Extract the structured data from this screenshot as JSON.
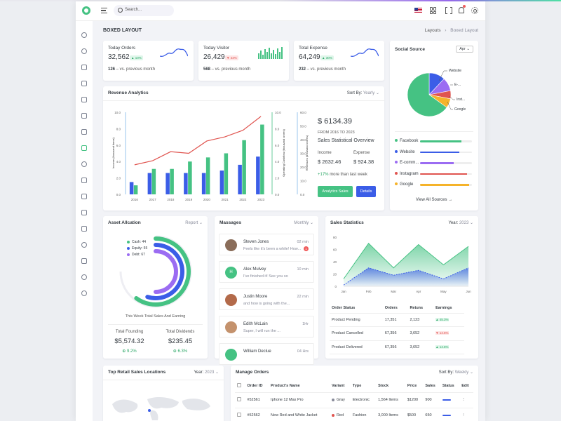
{
  "header": {
    "search_placeholder": "Search..."
  },
  "page": {
    "title": "BOXED LAYOUT",
    "breadcrumb": [
      "Layouts",
      "Boxed Layout"
    ]
  },
  "stats": [
    {
      "label": "Today Orders",
      "value": "32,562",
      "badge": "▲ 10%",
      "trend": "up",
      "sub_value": "126",
      "sub_text": " – vs. previous month",
      "color": "#3b5de7"
    },
    {
      "label": "Today Visitor",
      "value": "26,429",
      "badge": "▼ 23%",
      "trend": "down",
      "sub_value": "568",
      "sub_text": " – vs. previous month",
      "color": "#45c283"
    },
    {
      "label": "Total Expense",
      "value": "64,249",
      "badge": "▲ 30%",
      "trend": "up",
      "sub_value": "232",
      "sub_text": " – vs. previous month",
      "color": "#3b5de7"
    }
  ],
  "revenue": {
    "title": "Revenue Analytics",
    "sort_label": "Sort By:",
    "sort_value": "Yearly",
    "amount": "$ 6134.39",
    "range": "FROM 2016 TO 2023",
    "subtitle": "Sales Statistical Overview",
    "income_label": "Income",
    "income_value": "$ 2632.46",
    "expense_label": "Expense",
    "expense_value": "$ 924.38",
    "growth_value": "+17%",
    "growth_text": "more than last week",
    "btn_analytics": "Analytics Sales",
    "btn_details": "Details"
  },
  "chart_data": [
    {
      "type": "bar",
      "title": "Revenue Analytics",
      "categories": [
        "2016",
        "2017",
        "2018",
        "2019",
        "2020",
        "2021",
        "2022",
        "2023"
      ],
      "series": [
        {
          "name": "",
          "values": [
            1.5,
            2.6,
            2.6,
            2.6,
            2.6,
            2.9,
            3.6,
            4.6
          ],
          "color": "#3b5de7"
        },
        {
          "name": "",
          "values": [
            1.1,
            3.1,
            3.1,
            4.0,
            4.5,
            5.0,
            6.6,
            8.5
          ],
          "color": "#45c283"
        },
        {
          "name": "",
          "type": "line",
          "values": [
            3.6,
            4.1,
            5.2,
            5.0,
            6.5,
            7.0,
            7.8,
            9.5
          ],
          "color": "#e0544f"
        }
      ],
      "left_axis": {
        "label": "Income (thousand items)",
        "ticks": [
          "10.0",
          "8.0",
          "6.0",
          "4.0",
          "2.0",
          "0.0"
        ],
        "ylim": [
          0,
          10
        ]
      },
      "mid_axis": {
        "label": "Operating Cashflow (thousand crores)",
        "ticks": [
          "10.0",
          "8.0",
          "6.0",
          "4.0",
          "2.0",
          "0.0"
        ]
      },
      "right_axis": {
        "label": "Revenues (thousand crores)",
        "ticks": [
          "60.0",
          "50.0",
          "40.0",
          "30.0",
          "20.0",
          "10.0",
          "0.0"
        ]
      }
    },
    {
      "type": "pie",
      "title": "Social Source",
      "slices": [
        {
          "label": "Website",
          "value": 12,
          "color": "#3b5de7"
        },
        {
          "label": "E-commerce",
          "value": 10,
          "color": "#9b6cf2"
        },
        {
          "label": "Instagram",
          "value": 6,
          "color": "#e0544f"
        },
        {
          "label": "Google",
          "value": 7,
          "color": "#f5b32a"
        },
        {
          "label": "Facebook",
          "value": 65,
          "color": "#45c283"
        }
      ]
    },
    {
      "type": "area",
      "title": "Sales Statistics",
      "categories": [
        "Jan",
        "Feb",
        "Mar",
        "Apr",
        "May",
        "Jun"
      ],
      "ylim": [
        0,
        80
      ],
      "yticks": [
        "80",
        "60",
        "40",
        "20",
        "0"
      ],
      "series": [
        {
          "name": "",
          "values": [
            12,
            70,
            30,
            68,
            35,
            65
          ],
          "color": "#45c283"
        },
        {
          "name": "",
          "values": [
            2,
            30,
            18,
            26,
            12,
            30
          ],
          "color": "#3b5de7"
        }
      ]
    }
  ],
  "social": {
    "title": "Social Source",
    "filter": "Apr",
    "labels": [
      "Website",
      "E-...",
      "Inst...",
      "Google"
    ],
    "items": [
      {
        "name": "Facebook",
        "color": "#45c283",
        "fill": 0.8
      },
      {
        "name": "Website",
        "color": "#3b5de7",
        "fill": 0.75
      },
      {
        "name": "E-comm...",
        "color": "#9b6cf2",
        "fill": 0.65
      },
      {
        "name": "Instagram",
        "color": "#e0544f",
        "fill": 0.9
      },
      {
        "name": "Google",
        "color": "#f5b32a",
        "fill": 0.95
      }
    ],
    "view_all": "View All Sources →"
  },
  "asset": {
    "title": "Asset Allcation",
    "filter": "Report",
    "legend": [
      {
        "label": "Cash: 44",
        "color": "#45c283",
        "fill": 0.6
      },
      {
        "label": "Equity: 55",
        "color": "#3b5de7",
        "fill": 0.55
      },
      {
        "label": "Debt: 67",
        "color": "#9b6cf2",
        "fill": 0.5
      }
    ],
    "caption": "This Week Total Sales And Earning",
    "founding_label": "Total Founding",
    "founding_value": "$5,574.32",
    "founding_pct": "9.2%",
    "dividends_label": "Total Dividends",
    "dividends_value": "$235.45",
    "dividends_pct": "6.3%"
  },
  "messages": {
    "title": "Massages",
    "filter": "Monthly",
    "items": [
      {
        "name": "Steven Jones",
        "text": "Feels like it's been a while! How...",
        "time": "02 min",
        "count": "1",
        "avatar": "#8a6d5a"
      },
      {
        "name": "Alex Mulvey",
        "text": "I've finished it! See you so",
        "time": "10 min",
        "initial": "H",
        "avatar": "#45c283"
      },
      {
        "name": "Justin Moore",
        "text": "and how is going with the...",
        "time": "22 min",
        "avatar": "#b36a4a"
      },
      {
        "name": "Edith McLain",
        "text": "Super, I will run the ...",
        "time": "1Hr",
        "avatar": "#c4926d"
      },
      {
        "name": "William Declue",
        "text": "",
        "time": "04 Hrs",
        "avatar": "#45c283"
      }
    ]
  },
  "sales": {
    "title": "Sales Statistics",
    "year_label": "Year:",
    "year_value": "2023",
    "headers": [
      "Order Status",
      "Orders",
      "Retuns",
      "Earnings"
    ],
    "rows": [
      {
        "status": "Product Pending",
        "orders": "17,351",
        "returns": "2,123",
        "earnings": "▲ 45.3%",
        "trend": "up"
      },
      {
        "status": "Product Cancelled",
        "orders": "67,356",
        "returns": "3,652",
        "earnings": "▼ 14.6%",
        "trend": "down"
      },
      {
        "status": "Product Delivered",
        "orders": "67,356",
        "returns": "3,652",
        "earnings": "▲ 14.6%",
        "trend": "up"
      }
    ]
  },
  "locations": {
    "title": "Top Retail Sales Locations",
    "year_label": "Year:",
    "year_value": "2023"
  },
  "orders": {
    "title": "Manage Orders",
    "sort_label": "Sort By:",
    "sort_value": "Weekly",
    "headers": [
      "Order ID",
      "Product's Name",
      "Variant",
      "Type",
      "Stock",
      "Price",
      "Sales",
      "Status",
      "Edit"
    ],
    "rows": [
      {
        "id": "#52561",
        "product": "Iphone 12 Max Pro",
        "variant": "Gray",
        "variant_color": "#878a99",
        "type": "Electronic",
        "stock": "1,564 Items",
        "price": "$1200",
        "sales": "900"
      },
      {
        "id": "#52562",
        "product": "New Red and White Jacket",
        "variant": "Red",
        "variant_color": "#e0544f",
        "type": "Fashion",
        "stock": "3,000 Items",
        "price": "$500",
        "sales": "650"
      }
    ]
  }
}
